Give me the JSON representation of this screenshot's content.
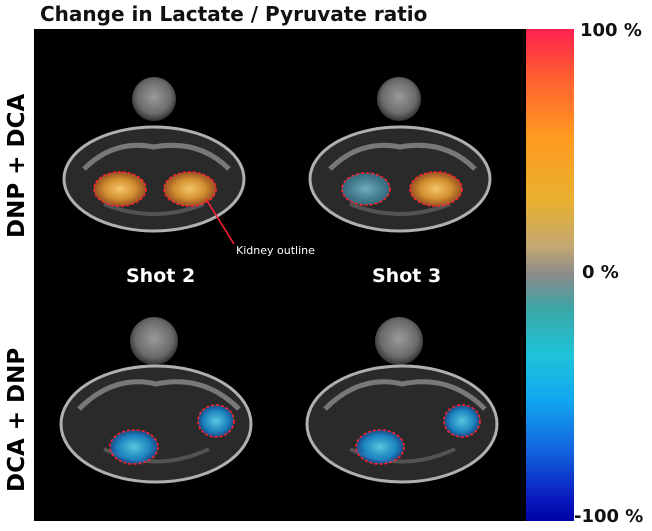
{
  "title": "Change in Lactate / Pyruvate ratio",
  "row_labels": {
    "top": "DNP + DCA",
    "bottom": "DCA + DNP"
  },
  "column_labels": {
    "left": "Shot 2",
    "right": "Shot 3"
  },
  "annotation": "Kidney outline",
  "colorbar": {
    "max": "100 %",
    "mid": "0 %",
    "min": "-100 %"
  },
  "colors": {
    "positive": "#ffb030",
    "zero": "#8a8a8a",
    "negative": "#1fa0e0",
    "outline": "#ff2030"
  }
}
